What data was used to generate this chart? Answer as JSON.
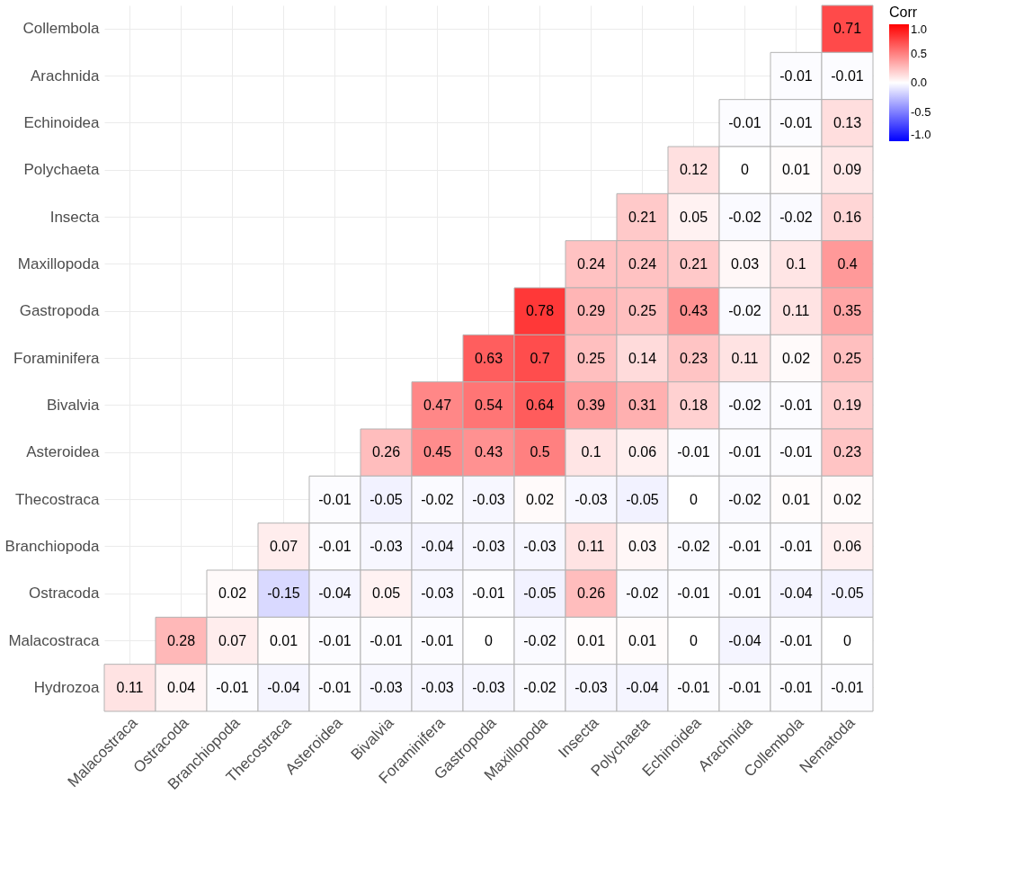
{
  "chart_data": {
    "type": "heatmap",
    "categories": [
      "Malacostraca",
      "Ostracoda",
      "Branchiopoda",
      "Thecostraca",
      "Asteroidea",
      "Bivalvia",
      "Foraminifera",
      "Gastropoda",
      "Maxillopoda",
      "Insecta",
      "Polychaeta",
      "Echinoidea",
      "Arachnida",
      "Collembola",
      "Nematoda"
    ],
    "y_categories": [
      "Collembola",
      "Arachnida",
      "Echinoidea",
      "Polychaeta",
      "Insecta",
      "Maxillopoda",
      "Gastropoda",
      "Foraminifera",
      "Bivalvia",
      "Asteroidea",
      "Thecostraca",
      "Branchiopoda",
      "Ostracoda",
      "Malacostraca",
      "Hydrozoa"
    ],
    "cells": [
      [
        null,
        null,
        null,
        null,
        null,
        null,
        null,
        null,
        null,
        null,
        null,
        null,
        null,
        null,
        0.71
      ],
      [
        null,
        null,
        null,
        null,
        null,
        null,
        null,
        null,
        null,
        null,
        null,
        null,
        null,
        -0.01,
        -0.01
      ],
      [
        null,
        null,
        null,
        null,
        null,
        null,
        null,
        null,
        null,
        null,
        null,
        null,
        -0.01,
        -0.01,
        0.13
      ],
      [
        null,
        null,
        null,
        null,
        null,
        null,
        null,
        null,
        null,
        null,
        null,
        0.12,
        0,
        0.01,
        0.09
      ],
      [
        null,
        null,
        null,
        null,
        null,
        null,
        null,
        null,
        null,
        null,
        0.21,
        0.05,
        -0.02,
        -0.02,
        0.16
      ],
      [
        null,
        null,
        null,
        null,
        null,
        null,
        null,
        null,
        null,
        0.24,
        0.24,
        0.21,
        0.03,
        0.1,
        0.4
      ],
      [
        null,
        null,
        null,
        null,
        null,
        null,
        null,
        null,
        0.78,
        0.29,
        0.25,
        0.43,
        -0.02,
        0.11,
        0.35
      ],
      [
        null,
        null,
        null,
        null,
        null,
        null,
        null,
        0.63,
        0.7,
        0.25,
        0.14,
        0.23,
        0.11,
        0.02,
        0.25
      ],
      [
        null,
        null,
        null,
        null,
        null,
        null,
        0.47,
        0.54,
        0.64,
        0.39,
        0.31,
        0.18,
        -0.02,
        -0.01,
        0.19
      ],
      [
        null,
        null,
        null,
        null,
        null,
        0.26,
        0.45,
        0.43,
        0.5,
        0.1,
        0.06,
        -0.01,
        -0.01,
        -0.01,
        0.23
      ],
      [
        null,
        null,
        null,
        null,
        -0.01,
        -0.05,
        -0.02,
        -0.03,
        0.02,
        -0.03,
        -0.05,
        0,
        -0.02,
        0.01,
        0.02
      ],
      [
        null,
        null,
        null,
        0.07,
        -0.01,
        -0.03,
        -0.04,
        -0.03,
        -0.03,
        0.11,
        0.03,
        -0.02,
        -0.01,
        -0.01,
        0.06
      ],
      [
        null,
        null,
        0.02,
        -0.15,
        -0.04,
        0.05,
        -0.03,
        -0.01,
        -0.05,
        0.26,
        -0.02,
        -0.01,
        -0.01,
        -0.04,
        -0.05
      ],
      [
        null,
        0.28,
        0.07,
        0.01,
        -0.01,
        -0.01,
        -0.01,
        0,
        -0.02,
        0.01,
        0.01,
        0,
        -0.04,
        -0.01,
        0
      ],
      [
        0.11,
        0.04,
        -0.01,
        -0.04,
        -0.01,
        -0.03,
        -0.03,
        -0.03,
        -0.02,
        -0.03,
        -0.04,
        -0.01,
        -0.01,
        -0.01,
        -0.01
      ]
    ],
    "colors": [
      "#0000ff",
      "#ffffff",
      "#ff0000"
    ],
    "legend_title": "Corr",
    "clim": [
      -1,
      1
    ],
    "cticks": [
      {
        "value": -1,
        "label": "-1.0"
      },
      {
        "value": -0.5,
        "label": "-0.5"
      },
      {
        "value": 0,
        "label": "0.0"
      },
      {
        "value": 0.5,
        "label": "0.5"
      },
      {
        "value": 1,
        "label": "1.0"
      }
    ],
    "data_labels": true,
    "grid": true
  }
}
